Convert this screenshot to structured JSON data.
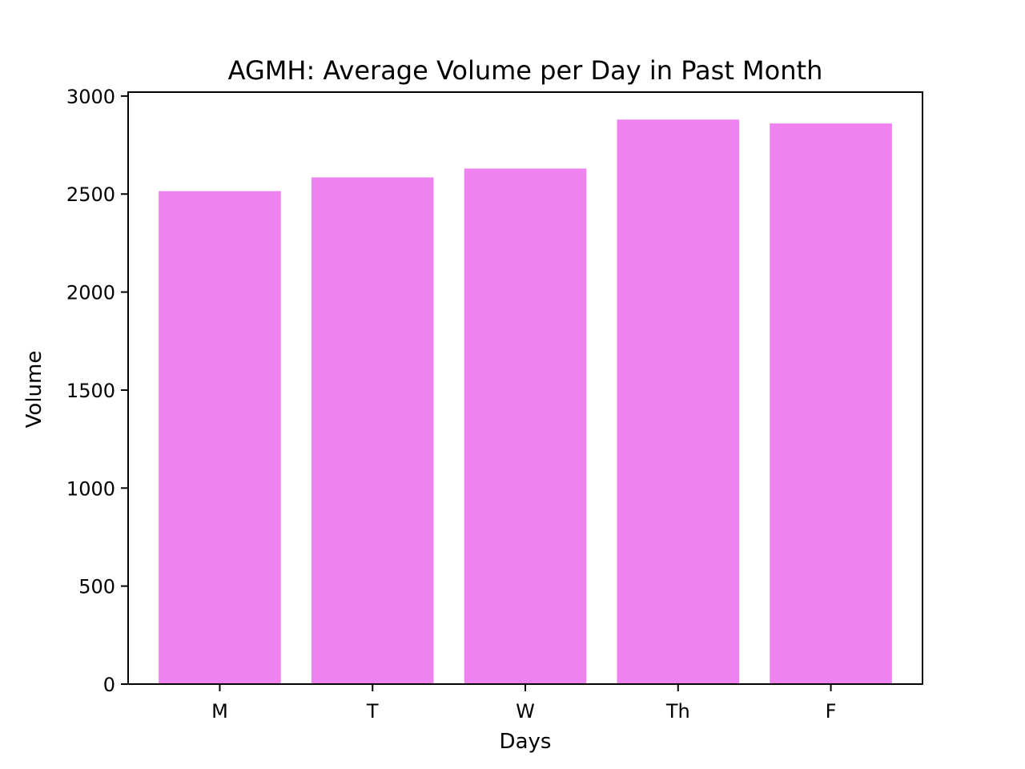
{
  "chart_data": {
    "type": "bar",
    "title": "AGMH: Average Volume per Day in Past Month",
    "xlabel": "Days",
    "ylabel": "Volume",
    "categories": [
      "M",
      "T",
      "W",
      "Th",
      "F"
    ],
    "values": [
      2515,
      2585,
      2630,
      2880,
      2860
    ],
    "ylim": [
      0,
      3020
    ],
    "yticks": [
      0,
      500,
      1000,
      1500,
      2000,
      2500,
      3000
    ],
    "ytick_labels": [
      "0",
      "500",
      "1000",
      "1500",
      "2000",
      "2500",
      "3000"
    ],
    "grid": false,
    "legend": "none",
    "colors": {
      "bar": "#ee82ee",
      "axis": "#000000",
      "background": "#ffffff"
    }
  }
}
